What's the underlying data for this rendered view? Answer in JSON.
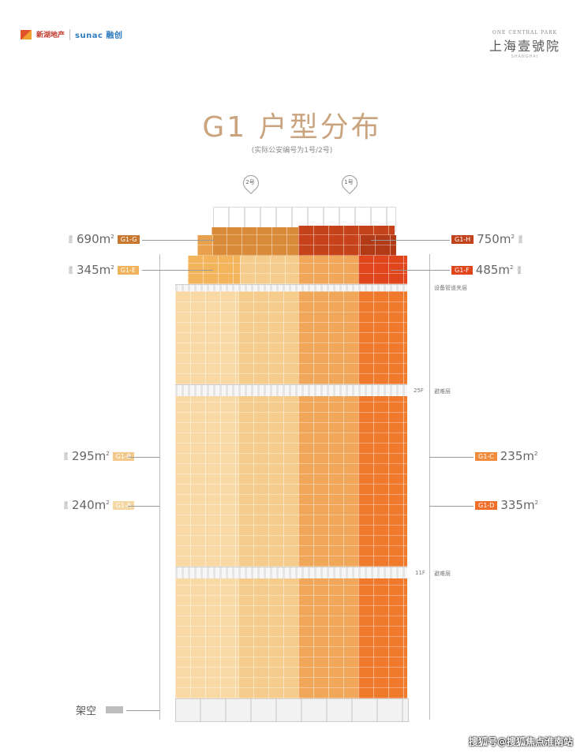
{
  "header": {
    "brand_left_cn": "新湖地产",
    "brand_left_en": "SINOLAND",
    "brand_sunac": "sunac 融创",
    "brand_right_en": "ONE CENTRAL PARK",
    "brand_right_cn": "上海壹號院",
    "brand_right_sub": "SHANGHAI"
  },
  "title": "G1 户型分布",
  "subtitle": "(实际公安编号为1号/2号)",
  "pins": {
    "left": "2号",
    "right": "1号"
  },
  "left_units": [
    {
      "area": "690",
      "unit": "m",
      "tag": "G1-G",
      "color": "#c8772e"
    },
    {
      "area": "345",
      "unit": "m",
      "tag": "G1-E",
      "color": "#f0b35c"
    },
    {
      "area": "295",
      "unit": "m",
      "tag": "G1-B",
      "color": "#f2c98a"
    },
    {
      "area": "240",
      "unit": "m",
      "tag": "G1-A",
      "color": "#f4d7a3"
    }
  ],
  "right_units": [
    {
      "area": "750",
      "unit": "m",
      "tag": "G1-H",
      "color": "#c0431c"
    },
    {
      "area": "485",
      "unit": "m",
      "tag": "G1-F",
      "color": "#e0451b"
    },
    {
      "area": "235",
      "unit": "m",
      "tag": "G1-C",
      "color": "#f08c3c"
    },
    {
      "area": "335",
      "unit": "m",
      "tag": "G1-D",
      "color": "#f06d2a"
    }
  ],
  "floor_notes": {
    "equipment": "设备管道夹层",
    "refuge_25": "避难层",
    "floor_25": "25F",
    "refuge_11": "避难层",
    "floor_11": "11F"
  },
  "ground_label": "架空",
  "watermark": "搜狐号@搜狐焦点淮南站",
  "colors": {
    "col1": "#f8d9a4",
    "col2": "#f5cc8c",
    "col3": "#f0a75a",
    "col4": "#f07a2c",
    "crown_left": "#d98b3a",
    "crown_right": "#c5421b"
  }
}
